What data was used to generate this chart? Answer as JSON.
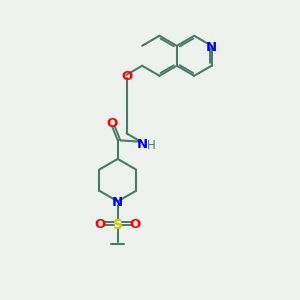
{
  "background_color": "#eef2ee",
  "bond_color": "#4a7a6a",
  "n_color": "#0000ff",
  "o_color": "#ff0000",
  "s_color": "#cccc00",
  "text_color": "#4a7a6a",
  "figsize": [
    3.0,
    3.0
  ],
  "dpi": 100,
  "xlim": [
    0,
    10
  ],
  "ylim": [
    0,
    10
  ]
}
